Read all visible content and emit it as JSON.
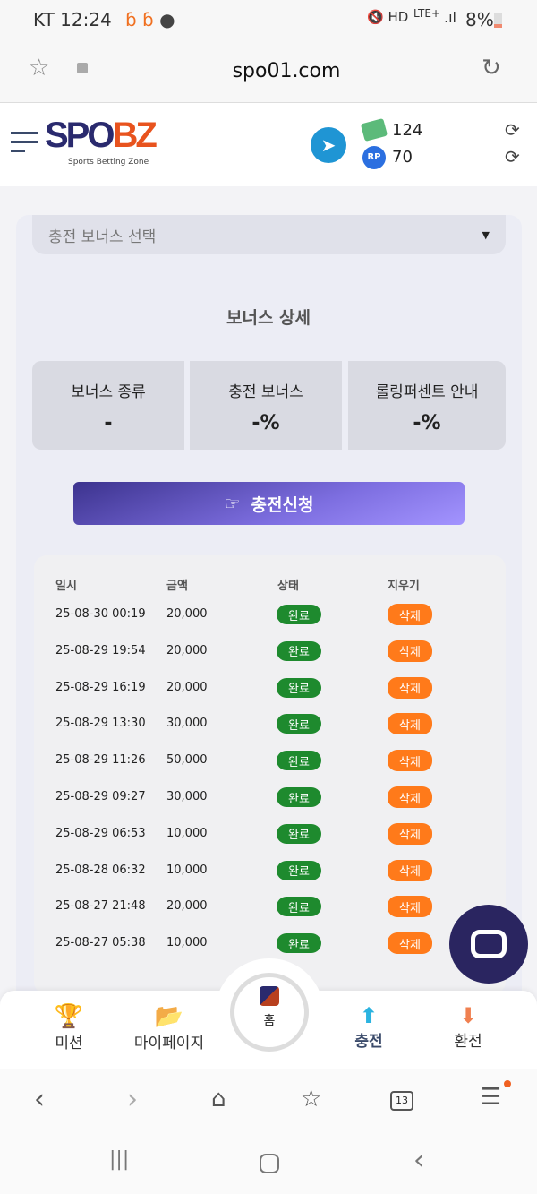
{
  "status_bar": {
    "carrier_time": "KT 12:24",
    "network": "LTE+",
    "battery": "8%"
  },
  "browser": {
    "url": "spo01.com",
    "tab_count": "13"
  },
  "header": {
    "logo_main": "SPO",
    "logo_accent": "BZ",
    "logo_tagline": "Sports Betting Zone",
    "money": "124",
    "rp_label": "RP",
    "rp": "70"
  },
  "bonus": {
    "select_placeholder": "충전 보너스 선택",
    "title": "보너스 상세",
    "boxes": [
      {
        "label": "보너스 종류",
        "value": "-"
      },
      {
        "label": "충전 보너스",
        "value": "-%"
      },
      {
        "label": "롤링퍼센트 안내",
        "value": "-%"
      }
    ],
    "submit_label": "충전신청"
  },
  "table": {
    "headers": [
      "일시",
      "금액",
      "상태",
      "지우기"
    ],
    "rows": [
      {
        "date": "25-08-30 00:19",
        "amount": "20,000",
        "status": "완료",
        "action": "삭제"
      },
      {
        "date": "25-08-29 19:54",
        "amount": "20,000",
        "status": "완료",
        "action": "삭제"
      },
      {
        "date": "25-08-29 16:19",
        "amount": "20,000",
        "status": "완료",
        "action": "삭제"
      },
      {
        "date": "25-08-29 13:30",
        "amount": "30,000",
        "status": "완료",
        "action": "삭제"
      },
      {
        "date": "25-08-29 11:26",
        "amount": "50,000",
        "status": "완료",
        "action": "삭제"
      },
      {
        "date": "25-08-29 09:27",
        "amount": "30,000",
        "status": "완료",
        "action": "삭제"
      },
      {
        "date": "25-08-29 06:53",
        "amount": "10,000",
        "status": "완료",
        "action": "삭제"
      },
      {
        "date": "25-08-28 06:32",
        "amount": "10,000",
        "status": "완료",
        "action": "삭제"
      },
      {
        "date": "25-08-27 21:48",
        "amount": "20,000",
        "status": "완료",
        "action": "삭제"
      },
      {
        "date": "25-08-27 05:38",
        "amount": "10,000",
        "status": "완료",
        "action": "삭제"
      }
    ]
  },
  "bottom_nav": [
    {
      "label": "미션",
      "icon": "trophy-icon"
    },
    {
      "label": "마이페이지",
      "icon": "folder-icon"
    },
    {
      "label": "홈",
      "icon": "home-logo-icon"
    },
    {
      "label": "충전",
      "icon": "deposit-icon"
    },
    {
      "label": "환전",
      "icon": "withdraw-icon"
    }
  ],
  "colors": {
    "accent": "#6a5ccc",
    "status_done": "#1e8a2e",
    "delete": "#ff7a1a",
    "logo_blue": "#2a2a6e",
    "logo_orange": "#e8531e",
    "chat": "#2a2560"
  }
}
